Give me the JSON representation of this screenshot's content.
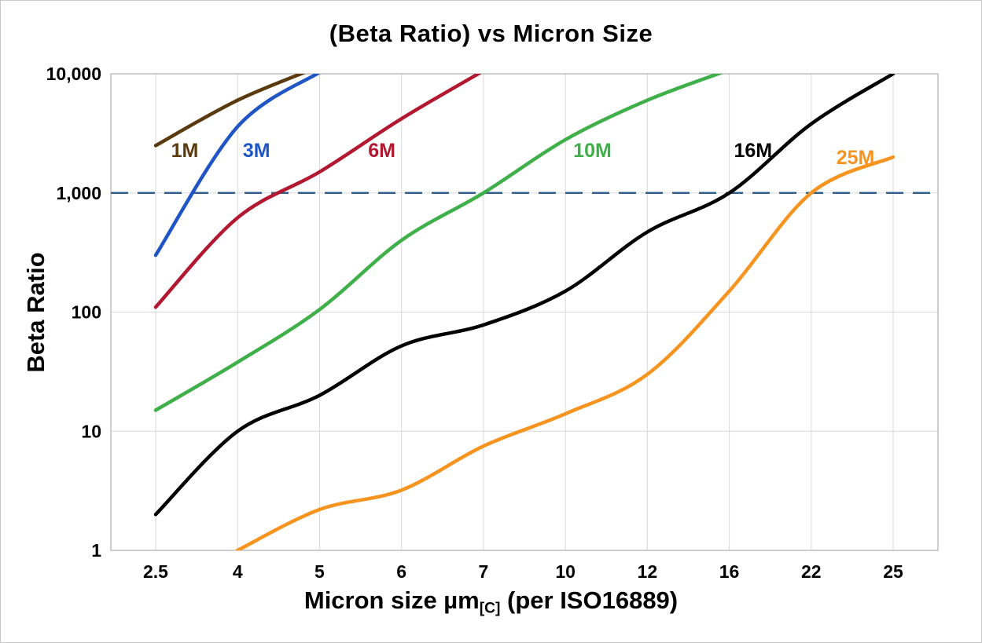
{
  "chart_data": {
    "type": "line",
    "title": "(Beta Ratio) vs Micron Size",
    "ylabel": "Beta Ratio",
    "xlabel_main": "Micron size µm",
    "xlabel_sub": "[C]",
    "xlabel_suffix": " (per ISO16889)",
    "x_categories": [
      2.5,
      4,
      5,
      6,
      7,
      10,
      12,
      16,
      22,
      25
    ],
    "x_tick_labels": [
      "2.5",
      "4",
      "5",
      "6",
      "7",
      "10",
      "12",
      "16",
      "22",
      "25"
    ],
    "y_scale": "log",
    "ylim": [
      1,
      10000
    ],
    "y_ticks": [
      {
        "value": 1,
        "label": "1"
      },
      {
        "value": 10,
        "label": "10"
      },
      {
        "value": 100,
        "label": "100"
      },
      {
        "value": 1000,
        "label": "1,000"
      },
      {
        "value": 10000,
        "label": "10,000"
      }
    ],
    "grid": true,
    "grid_color": "#d9d9d9",
    "border_color": "#bfbfbf",
    "legend": "inline-curve-labels",
    "reference_line": {
      "value": 1000,
      "style": "dashed",
      "color": "#2f5f8f"
    },
    "series": [
      {
        "name": "1M",
        "color": "#5a3a0e",
        "label_xi": 0.355,
        "label_beta": 2300,
        "points": [
          [
            2.5,
            2500
          ],
          [
            4,
            6000
          ],
          [
            5,
            11500
          ]
        ]
      },
      {
        "name": "3M",
        "color": "#1f55c4",
        "label_xi": 1.23,
        "label_beta": 2300,
        "points": [
          [
            2.5,
            300
          ],
          [
            4,
            3600
          ],
          [
            5,
            10300
          ]
        ]
      },
      {
        "name": "6M",
        "color": "#b2182f",
        "label_xi": 2.76,
        "label_beta": 2300,
        "points": [
          [
            2.5,
            110
          ],
          [
            4,
            620
          ],
          [
            5,
            1500
          ],
          [
            6,
            4200
          ],
          [
            7,
            10600
          ]
        ]
      },
      {
        "name": "10M",
        "color": "#3fb049",
        "label_xi": 5.33,
        "label_beta": 2300,
        "points": [
          [
            2.5,
            15
          ],
          [
            4,
            38
          ],
          [
            5,
            105
          ],
          [
            6,
            400
          ],
          [
            7,
            1000
          ],
          [
            10,
            2800
          ],
          [
            12,
            6000
          ],
          [
            16,
            10800
          ]
        ]
      },
      {
        "name": "16M",
        "color": "#000000",
        "label_xi": 7.29,
        "label_beta": 2300,
        "points": [
          [
            2.5,
            2
          ],
          [
            4,
            10
          ],
          [
            5,
            20
          ],
          [
            6,
            52
          ],
          [
            7,
            78
          ],
          [
            10,
            150
          ],
          [
            12,
            470
          ],
          [
            16,
            1000
          ],
          [
            22,
            3800
          ],
          [
            25,
            10000
          ]
        ]
      },
      {
        "name": "25M",
        "color": "#f79420",
        "label_xi": 8.54,
        "label_beta": 2000,
        "points": [
          [
            4,
            1
          ],
          [
            5,
            2.2
          ],
          [
            6,
            3.2
          ],
          [
            7,
            7.5
          ],
          [
            10,
            14
          ],
          [
            12,
            30
          ],
          [
            16,
            150
          ],
          [
            22,
            1000
          ],
          [
            25,
            2000
          ]
        ]
      }
    ]
  }
}
